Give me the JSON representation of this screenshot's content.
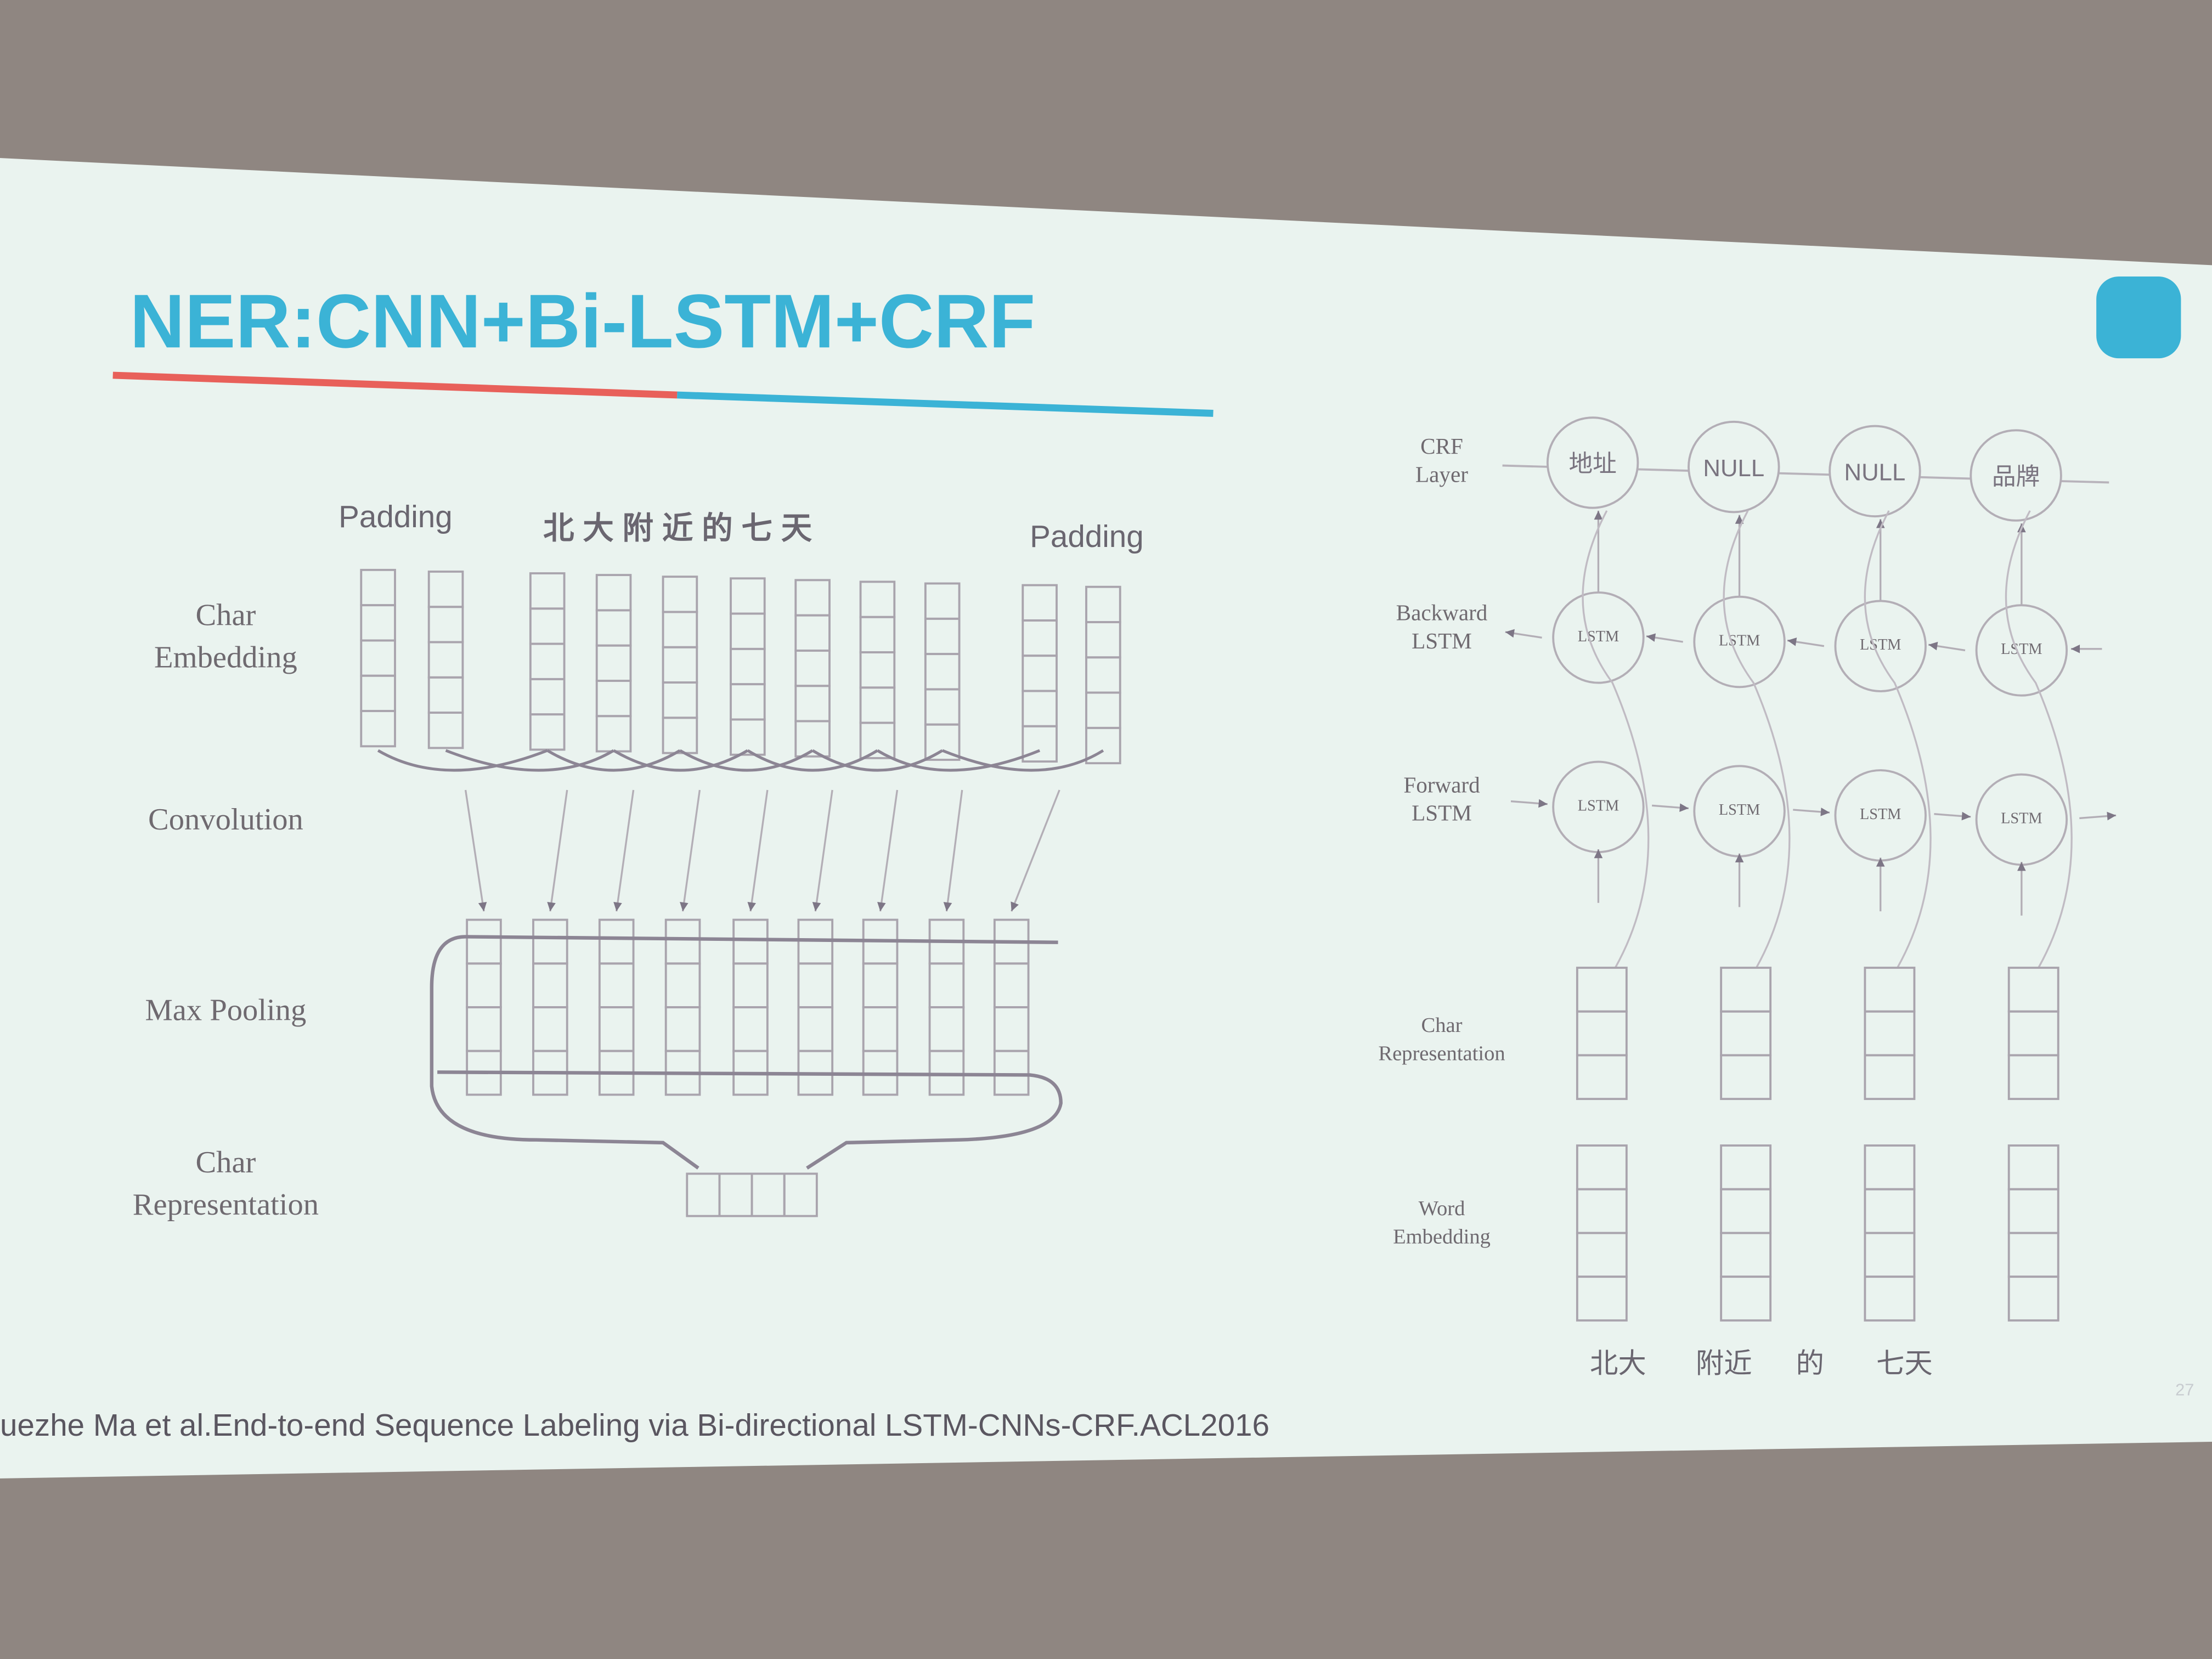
{
  "title": "NER:CNN+Bi-LSTM+CRF",
  "left_diagram": {
    "padding_left": "Padding",
    "characters": "北 大 附 近 的 七 天",
    "padding_right": "Padding",
    "row_labels": [
      [
        "Char",
        "Embedding"
      ],
      [
        "Convolution"
      ],
      [
        "Max Pooling"
      ],
      [
        "Char",
        "Representation"
      ]
    ]
  },
  "right_diagram": {
    "row_labels": [
      [
        "CRF",
        "Layer"
      ],
      [
        "Backward",
        "LSTM"
      ],
      [
        "Forward",
        "LSTM"
      ],
      [
        "Char",
        "Representation"
      ],
      [
        "Word",
        "Embedding"
      ]
    ],
    "crf_tags": [
      "地址",
      "NULL",
      "NULL",
      "品牌"
    ],
    "lstm_label": "LSTM",
    "words": [
      "北大",
      "附近",
      "的",
      "七天"
    ]
  },
  "citation": "uezhe Ma et al.End-to-end Sequence Labeling via Bi-directional LSTM-CNNs-CRF.ACL2016",
  "page_number": "27"
}
